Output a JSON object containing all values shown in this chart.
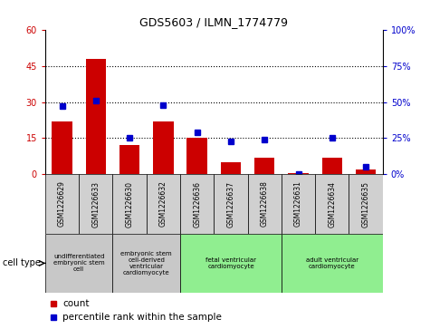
{
  "title": "GDS5603 / ILMN_1774779",
  "samples": [
    "GSM1226629",
    "GSM1226633",
    "GSM1226630",
    "GSM1226632",
    "GSM1226636",
    "GSM1226637",
    "GSM1226638",
    "GSM1226631",
    "GSM1226634",
    "GSM1226635"
  ],
  "counts": [
    22,
    48,
    12,
    22,
    15,
    5,
    7,
    0.5,
    7,
    2
  ],
  "percentiles": [
    47,
    51,
    25,
    48,
    29,
    23,
    24,
    0,
    25,
    5
  ],
  "ylim_left": [
    0,
    60
  ],
  "ylim_right": [
    0,
    100
  ],
  "yticks_left": [
    0,
    15,
    30,
    45,
    60
  ],
  "yticks_right": [
    0,
    25,
    50,
    75,
    100
  ],
  "ytick_labels_left": [
    "0",
    "15",
    "30",
    "45",
    "60"
  ],
  "ytick_labels_right": [
    "0%",
    "25%",
    "50%",
    "75%",
    "100%"
  ],
  "bar_color": "#cc0000",
  "dot_color": "#0000cc",
  "cell_type_groups": [
    {
      "label": "undifferentiated\nembryonic stem\ncell",
      "start": 0,
      "end": 2,
      "color": "#c8c8c8"
    },
    {
      "label": "embryonic stem\ncell-derived\nventricular\ncardiomyocyte",
      "start": 2,
      "end": 4,
      "color": "#c8c8c8"
    },
    {
      "label": "fetal ventricular\ncardiomyocyte",
      "start": 4,
      "end": 7,
      "color": "#90ee90"
    },
    {
      "label": "adult ventricular\ncardiomyocyte",
      "start": 7,
      "end": 10,
      "color": "#90ee90"
    }
  ],
  "cell_type_label": "cell type",
  "legend_count_label": "count",
  "legend_percentile_label": "percentile rank within the sample",
  "grid_color": "black",
  "grid_style": "dotted",
  "bg_color": "white",
  "plot_bg_color": "white",
  "sample_box_color": "#d0d0d0"
}
